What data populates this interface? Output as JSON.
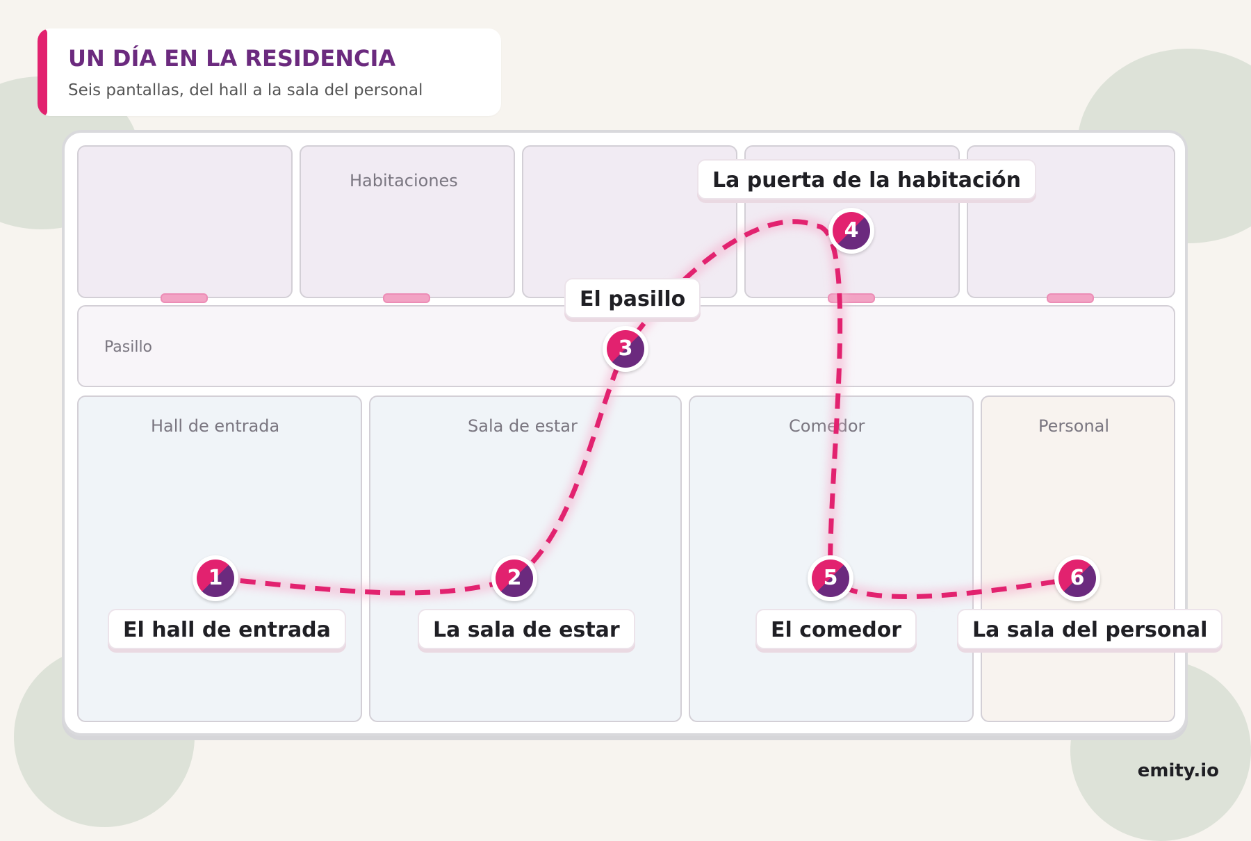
{
  "header": {
    "title": "UN DÍA EN LA RESIDENCIA",
    "subtitle": "Seis pantallas, del hall a la sala del personal"
  },
  "rooms": {
    "habitaciones": "Habitaciones",
    "pasillo": "Pasillo",
    "hall": "Hall de entrada",
    "sala_estar": "Sala de estar",
    "comedor": "Comedor",
    "personal": "Personal"
  },
  "steps": [
    {
      "number": "1",
      "label": "El hall de entrada"
    },
    {
      "number": "2",
      "label": "La sala de estar"
    },
    {
      "number": "3",
      "label": "El pasillo"
    },
    {
      "number": "4",
      "label": "La puerta de la habitación"
    },
    {
      "number": "5",
      "label": "El comedor"
    },
    {
      "number": "6",
      "label": "La sala del personal"
    }
  ],
  "brand": "emity.io",
  "colors": {
    "accent_pink": "#e2226f",
    "accent_purple": "#6b2a7e",
    "route": "#e2226f"
  }
}
